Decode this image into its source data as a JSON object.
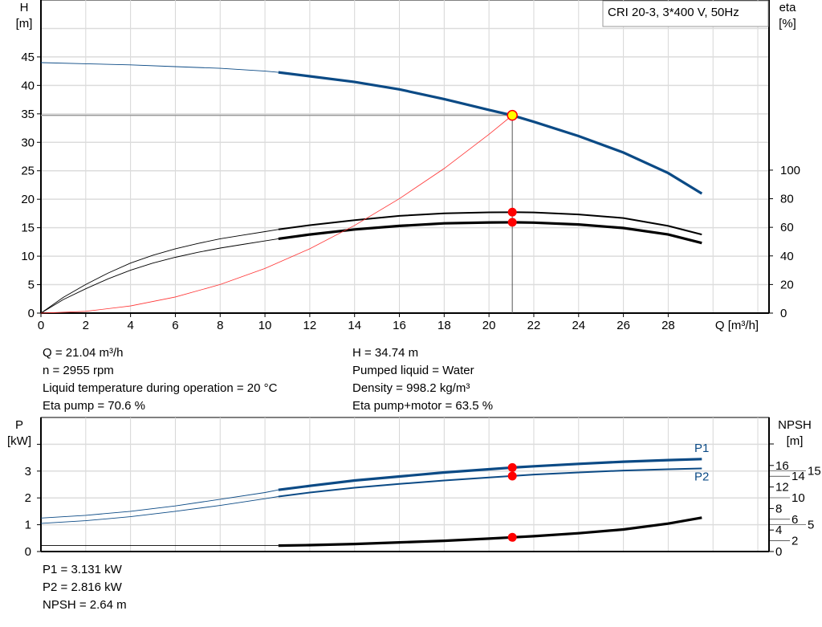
{
  "chart_data": [
    {
      "type": "line",
      "title": "CRI 20-3, 3*400 V, 50Hz",
      "xlabel": "Q [m³/h]",
      "ylabel": "H\n[m]",
      "ylabel_line1": "H",
      "ylabel_line2": "[m]",
      "y2label_line1": "eta",
      "y2label_line2": "[%]",
      "xlim": [
        0,
        32.5
      ],
      "ylim": [
        0,
        55
      ],
      "y2lim": [
        0,
        219
      ],
      "xticks": [
        0,
        2,
        4,
        6,
        8,
        10,
        12,
        14,
        16,
        18,
        20,
        22,
        24,
        26,
        28
      ],
      "yticks": [
        0,
        5,
        10,
        15,
        20,
        25,
        30,
        35,
        40,
        45
      ],
      "y2ticks": [
        0,
        20,
        40,
        60,
        80,
        100
      ],
      "grid": true,
      "duty_range_start_q": 10.6,
      "colors": {
        "head": "#0b4a85",
        "eta": "#000000",
        "system": "#ff3333",
        "duty_point": "#ff0000",
        "operating_point_fill": "#ffff00"
      },
      "series": [
        {
          "key": "head",
          "axis": "H",
          "x": [
            0,
            2,
            4,
            6,
            8,
            10,
            10.6,
            12,
            14,
            16,
            18,
            20,
            21.04,
            22,
            24,
            26,
            28,
            29.5
          ],
          "values": [
            44,
            43.8,
            43.6,
            43.3,
            43.0,
            42.5,
            42.3,
            41.6,
            40.6,
            39.3,
            37.6,
            35.7,
            34.74,
            33.6,
            31.1,
            28.2,
            24.6,
            21
          ]
        },
        {
          "key": "eta_pump",
          "axis": "eta",
          "x": [
            0,
            1,
            2,
            3,
            4,
            5,
            6,
            7,
            8,
            9,
            10,
            10.6,
            12,
            14,
            16,
            18,
            20,
            21.04,
            22,
            24,
            26,
            28,
            29.5
          ],
          "values": [
            0,
            11,
            20,
            28,
            35,
            40.5,
            45,
            48.7,
            52,
            54.5,
            57,
            58.5,
            61.5,
            65,
            68,
            69.8,
            70.5,
            70.6,
            70.4,
            69,
            66.5,
            61,
            55
          ]
        },
        {
          "key": "eta_pump_motor",
          "axis": "eta",
          "x": [
            0,
            1,
            2,
            3,
            4,
            5,
            6,
            7,
            8,
            9,
            10,
            10.6,
            12,
            14,
            16,
            18,
            20,
            21.04,
            22,
            24,
            26,
            28,
            29.5
          ],
          "values": [
            0,
            9.5,
            17,
            24,
            30,
            35,
            39,
            42.5,
            45.5,
            48,
            50.5,
            52,
            55,
            58.5,
            61,
            62.8,
            63.4,
            63.5,
            63.3,
            62,
            59.5,
            55,
            49
          ]
        },
        {
          "key": "system",
          "axis": "H",
          "x": [
            0,
            2,
            4,
            6,
            8,
            10,
            12,
            14,
            16,
            18,
            20,
            21.04
          ],
          "values": [
            0,
            0.31,
            1.26,
            2.83,
            5.02,
            7.85,
            11.3,
            15.4,
            20.1,
            25.4,
            31.4,
            34.74
          ]
        }
      ],
      "operating_point": {
        "q": 21.04,
        "h": 34.74,
        "eta_pump": 70.6,
        "eta_pump_motor": 63.5
      }
    },
    {
      "type": "line",
      "ylabel_line1": "P",
      "ylabel_line2": "[kW]",
      "y2label_line1": "NPSH",
      "y2label_line2": "[m]",
      "xlim": [
        0,
        32.5
      ],
      "ylim": [
        0,
        5
      ],
      "y2lim": [
        0,
        25
      ],
      "yticks": [
        0,
        1,
        2,
        3,
        4
      ],
      "ytick_labels": [
        "0",
        "1",
        "2",
        "3",
        ""
      ],
      "y2ticks": [
        0,
        2,
        4,
        5,
        6,
        8,
        10,
        12,
        14,
        15,
        16,
        20
      ],
      "y2tick_labels": [
        "0",
        "2",
        "4",
        "5",
        "6",
        "8",
        "10",
        "12",
        "14",
        "15",
        "16",
        ""
      ],
      "grid": true,
      "colors": {
        "power": "#0b4a85",
        "npsh": "#000000",
        "duty_point": "#ff0000",
        "series_label": "#0b4a85"
      },
      "series": [
        {
          "key": "p1",
          "name": "P1",
          "axis": "P",
          "x": [
            0,
            2,
            4,
            6,
            8,
            10,
            10.6,
            12,
            14,
            16,
            18,
            20,
            21.04,
            22,
            24,
            26,
            28,
            29.5
          ],
          "values": [
            1.25,
            1.35,
            1.5,
            1.7,
            1.95,
            2.2,
            2.3,
            2.45,
            2.65,
            2.8,
            2.95,
            3.07,
            3.131,
            3.18,
            3.27,
            3.35,
            3.41,
            3.45
          ]
        },
        {
          "key": "p2",
          "name": "P2",
          "axis": "P",
          "x": [
            0,
            2,
            4,
            6,
            8,
            10,
            10.6,
            12,
            14,
            16,
            18,
            20,
            21.04,
            22,
            24,
            26,
            28,
            29.5
          ],
          "values": [
            1.05,
            1.15,
            1.3,
            1.5,
            1.72,
            1.97,
            2.05,
            2.2,
            2.38,
            2.52,
            2.65,
            2.76,
            2.816,
            2.87,
            2.95,
            3.02,
            3.07,
            3.1
          ]
        },
        {
          "key": "npsh",
          "axis": "NPSH",
          "x": [
            0,
            2,
            4,
            6,
            8,
            10,
            10.6,
            12,
            14,
            16,
            18,
            20,
            21.04,
            22,
            24,
            26,
            28,
            29.5
          ],
          "values": [
            1.1,
            1.1,
            1.1,
            1.1,
            1.1,
            1.1,
            1.1,
            1.2,
            1.4,
            1.7,
            2.0,
            2.4,
            2.64,
            2.85,
            3.4,
            4.1,
            5.2,
            6.3
          ]
        }
      ],
      "operating_point": {
        "q": 21.04,
        "p1": 3.131,
        "p2": 2.816,
        "npsh": 2.64
      }
    }
  ],
  "info_top": {
    "left": [
      "Q = 21.04 m³/h",
      "n = 2955 rpm",
      "Liquid temperature during operation = 20 °C",
      "Eta pump = 70.6 %"
    ],
    "right": [
      "H = 34.74 m",
      "Pumped liquid = Water",
      "Density = 998.2 kg/m³",
      "Eta pump+motor = 63.5 %"
    ]
  },
  "info_bottom": [
    "P1 = 3.131 kW",
    "P2 = 2.816 kW",
    "NPSH = 2.64 m"
  ]
}
